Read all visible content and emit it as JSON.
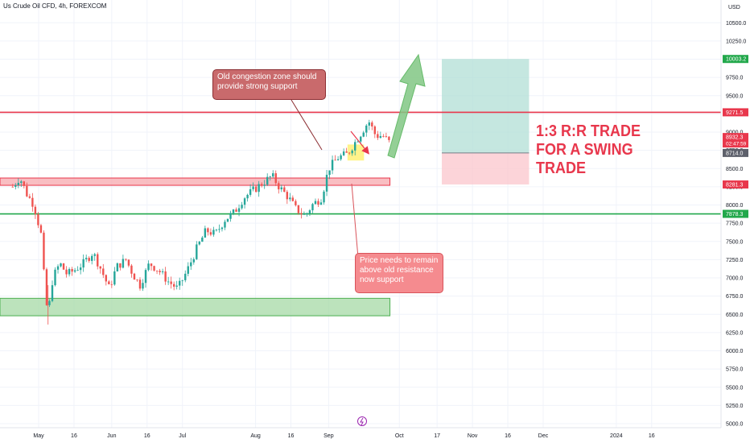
{
  "header": {
    "title": "Us Crude Oil CFD, 4h, FOREXCOM",
    "currency": "USD"
  },
  "chart_data": {
    "type": "candlestick",
    "timeframe": "4h",
    "ylim": [
      4900,
      10750
    ],
    "y_ticks": [
      5000,
      5250,
      5500,
      5750,
      6000,
      6250,
      6500,
      6750,
      7000,
      7250,
      7500,
      7750,
      8000,
      8250,
      8500,
      8750,
      9000,
      9250,
      9500,
      9750,
      10000,
      10250,
      10500
    ],
    "y_tick_labels": [
      "5000.0",
      "5250.0",
      "5500.0",
      "5750.0",
      "6000.0",
      "6250.0",
      "6500.0",
      "6750.0",
      "7000.0",
      "7250.0",
      "7500.0",
      "7750.0",
      "8000.0",
      "8250.0",
      "8500.0",
      "8750.0",
      "9000.0",
      "9250.0",
      "9500.0",
      "9750.0",
      "10000.0",
      "10250.0",
      "10500.0"
    ],
    "x_ticks": [
      "May",
      "16",
      "Jun",
      "16",
      "Jul",
      "Aug",
      "16",
      "Sep",
      "Oct",
      "17",
      "Nov",
      "16",
      "Dec",
      "2024",
      "16"
    ],
    "price_path": [
      [
        "2023-04-20",
        8250
      ],
      [
        "2023-04-23",
        8380
      ],
      [
        "2023-04-26",
        8150
      ],
      [
        "2023-04-29",
        8000
      ],
      [
        "2023-05-02",
        7600
      ],
      [
        "2023-05-04",
        6700
      ],
      [
        "2023-05-05",
        6500
      ],
      [
        "2023-05-07",
        7000
      ],
      [
        "2023-05-10",
        7200
      ],
      [
        "2023-05-13",
        7050
      ],
      [
        "2023-05-16",
        7100
      ],
      [
        "2023-05-20",
        7200
      ],
      [
        "2023-05-24",
        7350
      ],
      [
        "2023-05-27",
        7150
      ],
      [
        "2023-05-31",
        6850
      ],
      [
        "2023-06-03",
        7150
      ],
      [
        "2023-06-07",
        7250
      ],
      [
        "2023-06-10",
        7050
      ],
      [
        "2023-06-13",
        6900
      ],
      [
        "2023-06-17",
        7200
      ],
      [
        "2023-06-21",
        7100
      ],
      [
        "2023-06-25",
        6950
      ],
      [
        "2023-06-29",
        6850
      ],
      [
        "2023-07-03",
        7100
      ],
      [
        "2023-07-07",
        7400
      ],
      [
        "2023-07-11",
        7650
      ],
      [
        "2023-07-15",
        7600
      ],
      [
        "2023-07-19",
        7800
      ],
      [
        "2023-07-23",
        7900
      ],
      [
        "2023-07-27",
        8100
      ],
      [
        "2023-07-31",
        8200
      ],
      [
        "2023-08-04",
        8300
      ],
      [
        "2023-08-08",
        8400
      ],
      [
        "2023-08-11",
        8250
      ],
      [
        "2023-08-15",
        8100
      ],
      [
        "2023-08-18",
        7950
      ],
      [
        "2023-08-22",
        7850
      ],
      [
        "2023-08-25",
        8000
      ],
      [
        "2023-08-29",
        8100
      ],
      [
        "2023-09-01",
        8500
      ],
      [
        "2023-09-05",
        8650
      ],
      [
        "2023-09-09",
        8700
      ],
      [
        "2023-09-13",
        8900
      ],
      [
        "2023-09-16",
        9050
      ],
      [
        "2023-09-18",
        9150
      ],
      [
        "2023-09-21",
        8950
      ],
      [
        "2023-09-24",
        8950
      ],
      [
        "2023-09-27",
        8850
      ]
    ],
    "x_range": [
      "2023-04-15",
      "2024-01-10"
    ],
    "levels": [
      {
        "name": "resistance",
        "value": 9271.5,
        "label": "9271.5",
        "color": "#e8374c"
      },
      {
        "name": "support",
        "value": 7878.3,
        "label": "7878.3",
        "color": "#22a84b"
      }
    ],
    "price_labels": [
      {
        "value": 10003.2,
        "label": "10003.2",
        "color": "#22a84b"
      },
      {
        "value": 8932.3,
        "label": "8932.3",
        "sublabel": "02:47:59",
        "color": "#e8374c"
      },
      {
        "value": 8714.0,
        "label": "8714.0",
        "color": "#5d606b"
      },
      {
        "value": 8281.3,
        "label": "8281.3",
        "color": "#e8374c"
      }
    ],
    "zones": [
      {
        "name": "old-resistance-zone",
        "x0": "2023-04-15",
        "x1": "2023-09-27",
        "y0": 8270,
        "y1": 8370,
        "fill": "#f7a8ad",
        "stroke": "#e8374c"
      },
      {
        "name": "demand-zone",
        "x0": "2023-04-15",
        "x1": "2023-09-27",
        "y0": 6480,
        "y1": 6720,
        "fill": "#a5d9a5",
        "stroke": "#4caf50"
      },
      {
        "name": "congestion-zone",
        "x0": "2023-09-09",
        "x1": "2023-09-16",
        "y0": 8610,
        "y1": 8830,
        "fill": "#fff176",
        "stroke": "#fff176"
      }
    ],
    "position": {
      "x0": "2023-10-19",
      "x1": "2023-11-25",
      "entry": 8714.0,
      "target": 10003.2,
      "stop": 8281.3
    }
  },
  "annotations": {
    "congestion": "Old congestion zone should provide strong support",
    "support": "Price needs to remain above old resistance now support",
    "trade_line1": "1:3 R:R TRADE",
    "trade_line2": "FOR A SWING",
    "trade_line3": "TRADE"
  },
  "colors": {
    "up": "#26a69a",
    "down": "#ef5350",
    "grid": "#f0f3fa"
  }
}
